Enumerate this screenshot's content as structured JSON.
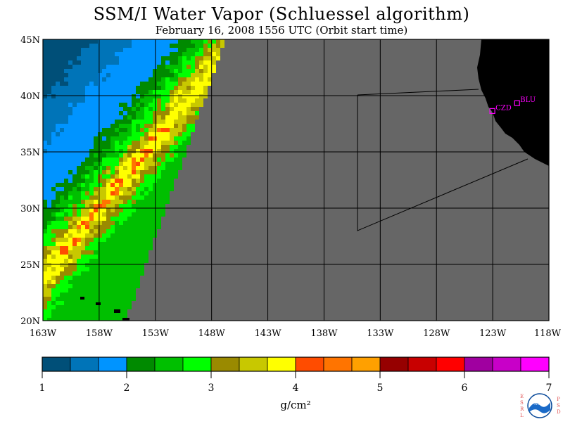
{
  "title": "SSM/I Water Vapor (Schluessel algorithm)",
  "subtitle": "February 16, 2008  1556 UTC  (Orbit start time)",
  "map": {
    "lon_range": [
      -163,
      -118
    ],
    "lat_range": [
      20,
      45
    ],
    "lon_ticks": [
      "163W",
      "158W",
      "153W",
      "148W",
      "143W",
      "138W",
      "133W",
      "128W",
      "123W",
      "118W"
    ],
    "lat_ticks": [
      "45N",
      "40N",
      "35N",
      "30N",
      "25N",
      "20N"
    ],
    "no_data_color": "#666666",
    "land_color": "#000000",
    "stations": [
      {
        "name": "CZD",
        "lon": -123.0,
        "lat": 38.6
      },
      {
        "name": "BLU",
        "lon": -120.8,
        "lat": 39.3
      }
    ]
  },
  "colorbar": {
    "min": 1,
    "max": 7,
    "tick_labels": [
      "1",
      "2",
      "3",
      "4",
      "5",
      "6",
      "7"
    ],
    "unit_label": "g/cm²",
    "colors": [
      "#004f78",
      "#0074b8",
      "#0094ff",
      "#008a00",
      "#00bf00",
      "#00ff00",
      "#9a8a00",
      "#c8c800",
      "#ffff00",
      "#ff4c00",
      "#ff7400",
      "#ffa000",
      "#960000",
      "#c80000",
      "#ff0000",
      "#a000a0",
      "#c800c8",
      "#ff00ff"
    ]
  },
  "logo": {
    "left_letters": "ESRL",
    "right_letters": "PSD",
    "badge": "NOAA"
  }
}
